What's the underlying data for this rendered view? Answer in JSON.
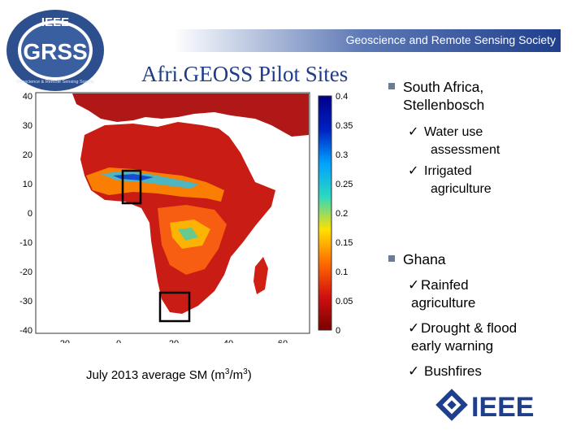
{
  "org": {
    "logo_ring_text": "IEEE",
    "logo_main_text": "GRSS",
    "logo_sub_text": "Geoscience & Remote Sensing Society",
    "band_text": "Geoscience and Remote Sensing Society",
    "footer_logo": "IEEE"
  },
  "slide": {
    "title": "Afri.GEOSS Pilot Sites",
    "caption_prefix": "July 2013 average SM (m",
    "caption_sup1": "3",
    "caption_mid": "/m",
    "caption_sup2": "3",
    "caption_suffix": ")"
  },
  "map": {
    "y_ticks": [
      "40",
      "30",
      "20",
      "10",
      "0",
      "-10",
      "-20",
      "-30",
      "-40"
    ],
    "x_ticks": [
      "-20",
      "0",
      "20",
      "40",
      "60"
    ],
    "colorbar_ticks": [
      "0.4",
      "0.35",
      "0.3",
      "0.25",
      "0.2",
      "0.15",
      "0.1",
      "0.05",
      "0"
    ],
    "colorbar_colors": [
      "#7a0000",
      "#d01010",
      "#ff6a00",
      "#ffe000",
      "#2cd8c0",
      "#00a0ff",
      "#0020c0",
      "#00008a"
    ]
  },
  "sites": [
    {
      "name_line1": "South Africa,",
      "name_line2": "Stellenbosch",
      "items": [
        {
          "line1": "Water use",
          "line2": "assessment"
        },
        {
          "line1": "Irrigated",
          "line2": "agriculture"
        }
      ]
    },
    {
      "name_line1": "Ghana",
      "items": [
        {
          "line1": "Rainfed",
          "line2": "agriculture"
        },
        {
          "line1": "Drought & flood",
          "line2": "early warning"
        },
        {
          "line1": "Bushfires"
        }
      ]
    }
  ]
}
